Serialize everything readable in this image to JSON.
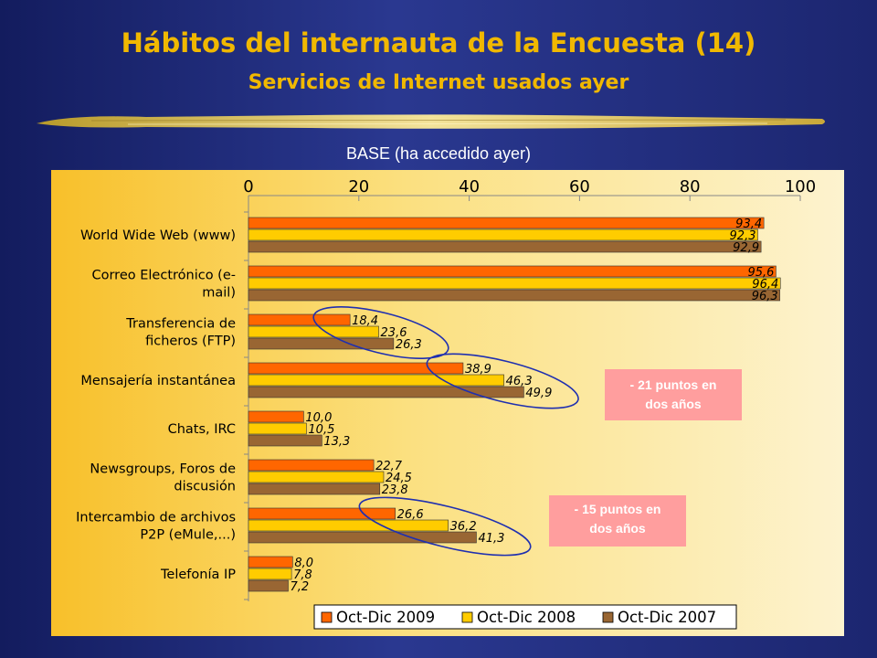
{
  "slide": {
    "title": "Hábitos del internauta de la Encuesta (14)",
    "subtitle": "Servicios de Internet usados ayer",
    "base_label": "BASE (ha accedido ayer)"
  },
  "callouts": [
    {
      "line1": "- 21 puntos en",
      "line2": "dos años"
    },
    {
      "line1": "- 15 puntos en",
      "line2": "dos años"
    }
  ],
  "colors": {
    "background": "#1c2670",
    "title": "#f0b800",
    "callout": "#ff9e9e",
    "ellipse": "#1f2fb0"
  },
  "chart_data": {
    "type": "bar",
    "orientation": "horizontal",
    "categories": [
      [
        "World Wide Web (www)"
      ],
      [
        "Correo Electrónico (e-",
        "mail)"
      ],
      [
        "Transferencia de",
        "ficheros (FTP)"
      ],
      [
        "Mensajería instantánea"
      ],
      [
        "Chats, IRC"
      ],
      [
        "Newsgroups, Foros de",
        "discusión"
      ],
      [
        "Intercambio de archivos",
        "P2P (eMule,...)"
      ],
      [
        "Telefonía IP"
      ]
    ],
    "series": [
      {
        "name": "Oct-Dic 2009",
        "color": "#ff6600",
        "values": [
          93.4,
          95.6,
          18.4,
          38.9,
          10.0,
          22.7,
          26.6,
          8.0
        ],
        "labels": [
          "93,4",
          "95,6",
          "18,4",
          "38,9",
          "10,0",
          "22,7",
          "26,6",
          "8,0"
        ]
      },
      {
        "name": "Oct-Dic 2008",
        "color": "#ffcc00",
        "values": [
          92.3,
          96.4,
          23.6,
          46.3,
          10.5,
          24.5,
          36.2,
          7.8
        ],
        "labels": [
          "92,3",
          "96,4",
          "23,6",
          "46,3",
          "10,5",
          "24,5",
          "36,2",
          "7,8"
        ]
      },
      {
        "name": "Oct-Dic 2007",
        "color": "#996633",
        "values": [
          92.9,
          96.3,
          26.3,
          49.9,
          13.3,
          23.8,
          41.3,
          7.2
        ],
        "labels": [
          "92,9",
          "96,3",
          "26,3",
          "49,9",
          "13,3",
          "23,8",
          "41,3",
          "7,2"
        ]
      }
    ],
    "xlim": [
      0,
      100
    ],
    "xticks": [
      "0",
      "20",
      "40",
      "60",
      "80",
      "100"
    ],
    "tick_values": [
      0,
      20,
      40,
      60,
      80,
      100
    ],
    "axis_position": "top",
    "legend_position": "bottom-right",
    "highlighted_categories": [
      2,
      3,
      6
    ],
    "grid": false
  }
}
